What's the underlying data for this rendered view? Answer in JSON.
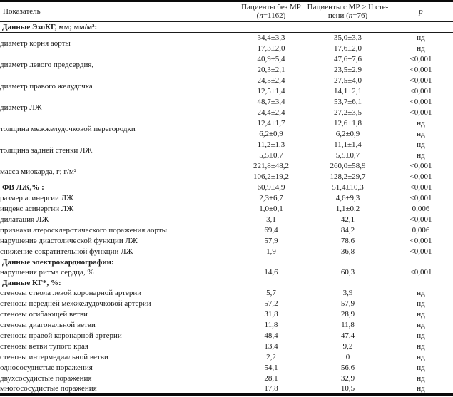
{
  "table": {
    "header": {
      "col1": "Показатель",
      "col2": {
        "line1": "Пациенты без МР",
        "line2_pre": "(",
        "n": "n",
        "line2_post": "=1162)"
      },
      "col3": {
        "line1": "Пациенты с МР ≥ II сте-",
        "line2_pre": "пени (",
        "n": "n",
        "line2_post": "=76)"
      },
      "col4": "p"
    },
    "rows": [
      {
        "type": "section",
        "label": "Данные ЭхоКГ, мм; мм/м²:",
        "ruled": true
      },
      {
        "type": "pair",
        "label": "диаметр корня аорты",
        "rows": [
          [
            "34,4±3,3",
            "35,0±3,3",
            "нд"
          ],
          [
            "17,3±2,0",
            "17,6±2,0",
            "нд"
          ]
        ]
      },
      {
        "type": "pair",
        "label": "диаметр левого предсердия,",
        "rows": [
          [
            "40,9±5,4",
            "47,6±7,6",
            "<0,001"
          ],
          [
            "20,3±2,1",
            "23,5±2,9",
            "<0,001"
          ]
        ]
      },
      {
        "type": "pair",
        "label": "диаметр правого желудочка",
        "rows": [
          [
            "24,5±2,4",
            "27,5±4,0",
            "<0,001"
          ],
          [
            "12,5±1,4",
            "14,1±2,1",
            "<0,001"
          ]
        ]
      },
      {
        "type": "pair",
        "label": "диаметр ЛЖ",
        "rows": [
          [
            "48,7±3,4",
            "53,7±6,1",
            "<0,001"
          ],
          [
            "24,4±2,4",
            "27,2±3,5",
            "<0,001"
          ]
        ]
      },
      {
        "type": "pair",
        "label": "толщина межжелудочковой перегородки",
        "rows": [
          [
            "12,4±1,7",
            "12,6±1,8",
            "нд"
          ],
          [
            "6,2±0,9",
            "6,2±0,9",
            "нд"
          ]
        ]
      },
      {
        "type": "pair",
        "label": "толщина задней стенки ЛЖ",
        "rows": [
          [
            "11,2±1,3",
            "11,1±1,4",
            "нд"
          ],
          [
            "5,5±0,7",
            "5,5±0,7",
            "нд"
          ]
        ]
      },
      {
        "type": "pair",
        "label": "масса миокарда, г;  г/м²",
        "rows": [
          [
            "221,8±48,2",
            "260,0±58,9",
            "<0,001"
          ],
          [
            "106,2±19,2",
            "128,2±29,7",
            "<0,001"
          ]
        ]
      },
      {
        "type": "row",
        "bold": true,
        "label": "ФВ ЛЖ,% :",
        "values": [
          "60,9±4,9",
          "51,4±10,3",
          "<0,001"
        ]
      },
      {
        "type": "row",
        "label": "размер асинергии ЛЖ",
        "values": [
          "2,3±6,7",
          "4,6±9,3",
          "<0,001"
        ]
      },
      {
        "type": "row",
        "label": "индекс асинергии ЛЖ",
        "values": [
          "1,0±0,1",
          "1,1±0,2",
          "0,006"
        ]
      },
      {
        "type": "row",
        "label": "дилатация ЛЖ",
        "values": [
          "3,1",
          "42,1",
          "<0,001"
        ]
      },
      {
        "type": "row",
        "label": "признаки атеросклеротического поражения аорты",
        "values": [
          "69,4",
          "84,2",
          "0,006"
        ]
      },
      {
        "type": "row",
        "label": "нарушение диастолической функции ЛЖ",
        "values": [
          "57,9",
          "78,6",
          "<0,001"
        ]
      },
      {
        "type": "row",
        "label": "снижение сократительной функции ЛЖ",
        "values": [
          "1,9",
          "36,8",
          "<0,001"
        ]
      },
      {
        "type": "section",
        "label": "Данные электрокардиографии:"
      },
      {
        "type": "row",
        "label": "нарушения ритма сердца, %",
        "values": [
          "14,6",
          "60,3",
          "<0,001"
        ]
      },
      {
        "type": "section",
        "label": "Данные КГ*, %:"
      },
      {
        "type": "row",
        "label": "стенозы ствола левой коронарной артерии",
        "values": [
          "5,7",
          "3,9",
          "нд"
        ]
      },
      {
        "type": "row",
        "label": "стенозы передней межжелудочковой артерии",
        "values": [
          "57,2",
          "57,9",
          "нд"
        ]
      },
      {
        "type": "row",
        "label": "стенозы огибающей ветви",
        "values": [
          "31,8",
          "28,9",
          "нд"
        ]
      },
      {
        "type": "row",
        "label": "стенозы диагональной ветви",
        "values": [
          "11,8",
          "11,8",
          "нд"
        ]
      },
      {
        "type": "row",
        "label": "стенозы правой коронарной артерии",
        "values": [
          "48,4",
          "47,4",
          "нд"
        ]
      },
      {
        "type": "row",
        "label": "стенозы ветви тупого края",
        "values": [
          "13,4",
          "9,2",
          "нд"
        ]
      },
      {
        "type": "row",
        "label": "стенозы интермедиальной ветви",
        "values": [
          "2,2",
          "0",
          "нд"
        ]
      },
      {
        "type": "row",
        "label": "однососудистые поражения",
        "values": [
          "54,1",
          "56,6",
          "нд"
        ]
      },
      {
        "type": "row",
        "label": "двухсосудистые поражения",
        "values": [
          "28,1",
          "32,9",
          "нд"
        ]
      },
      {
        "type": "row",
        "label": "многососудистые поражения",
        "values": [
          "17,8",
          "10,5",
          "нд"
        ]
      }
    ]
  }
}
